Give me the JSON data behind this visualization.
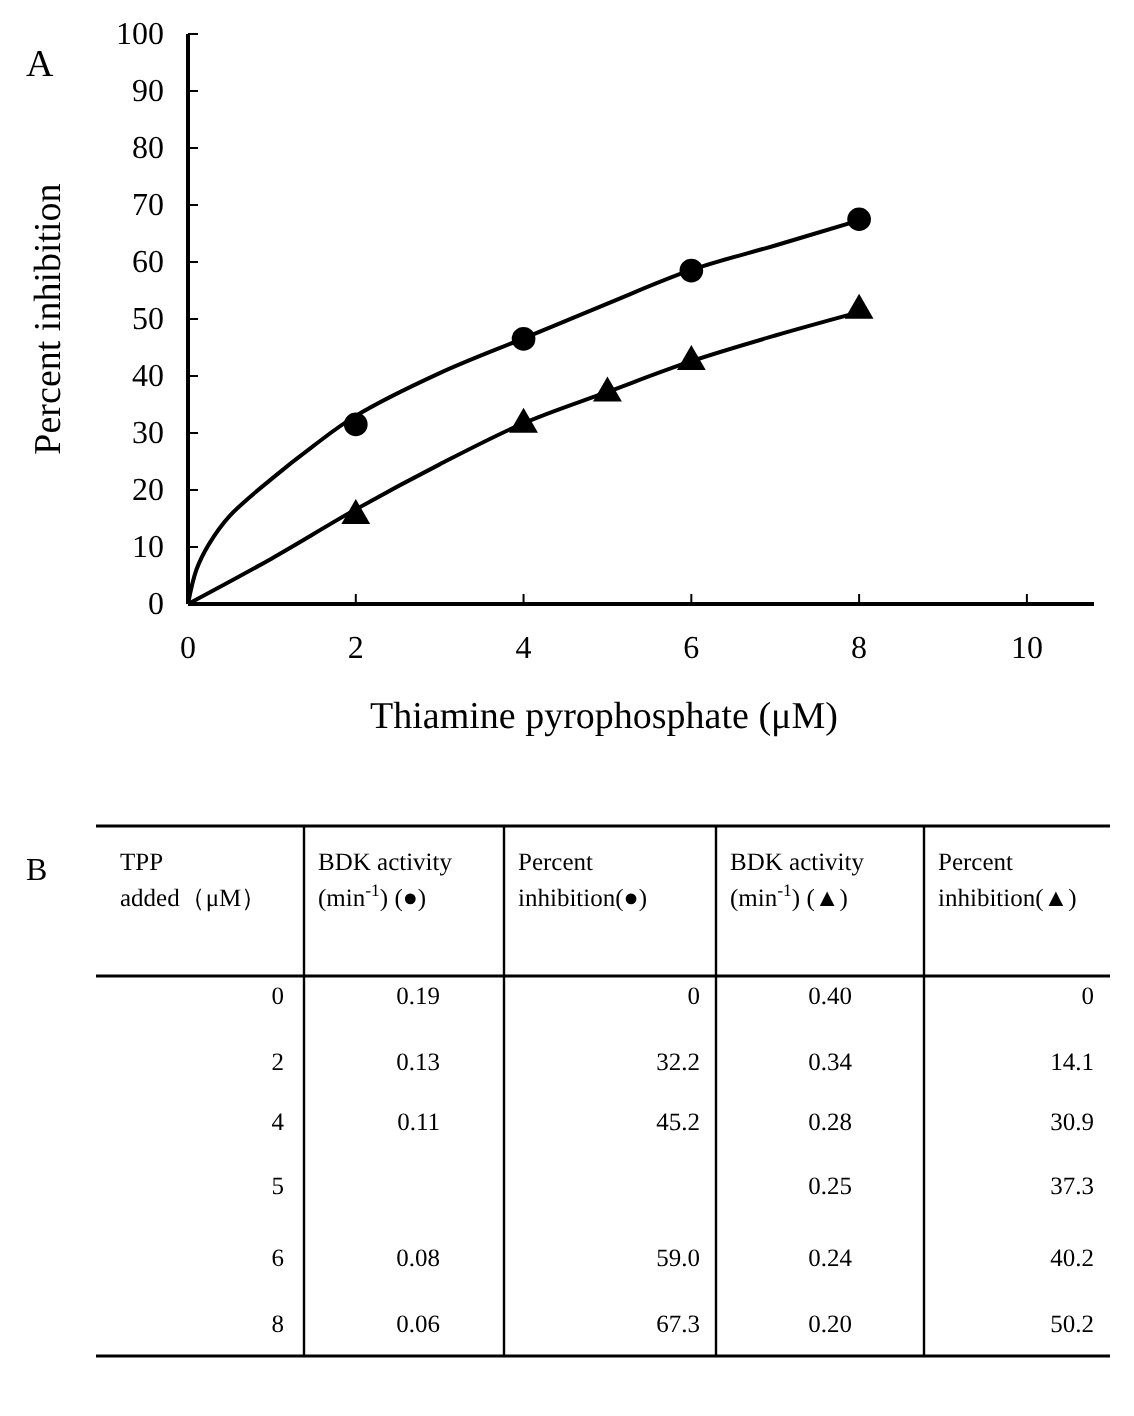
{
  "chart_data": [
    {
      "type": "scatter",
      "title": "A",
      "xlabel": "Thiamine pyrophosphate (μM)",
      "ylabel": "Percent inhibition",
      "xlim": [
        0,
        10.8
      ],
      "ylim": [
        0,
        100
      ],
      "xticks": [
        0,
        2,
        4,
        6,
        8,
        10
      ],
      "yticks": [
        0,
        10,
        20,
        30,
        40,
        50,
        60,
        70,
        80,
        90,
        100
      ],
      "grid": false,
      "series": [
        {
          "type": "line",
          "color": "#000000",
          "x": [
            0,
            0.1,
            0.25,
            0.5,
            1,
            1.5,
            2,
            3,
            4,
            5,
            6,
            7,
            8
          ],
          "values": [
            0,
            6,
            10.5,
            15.5,
            22,
            27.8,
            33,
            40.5,
            46.6,
            52.7,
            58.6,
            62.9,
            67.3
          ]
        },
        {
          "type": "line",
          "color": "#000000",
          "x": [
            0,
            1,
            2,
            3,
            4,
            5,
            6,
            7,
            8
          ],
          "values": [
            0,
            8,
            16.6,
            24.5,
            31.7,
            37.2,
            42.6,
            47.1,
            51.2
          ]
        },
        {
          "type": "scatter",
          "marker": "circle",
          "color": "#000000",
          "x": [
            2,
            4,
            6,
            8
          ],
          "values": [
            31.5,
            46.5,
            58.5,
            67.5
          ]
        },
        {
          "type": "scatter",
          "marker": "triangle",
          "color": "#000000",
          "x": [
            2,
            4,
            5,
            6,
            8
          ],
          "values": [
            15.5,
            31.5,
            37,
            42.5,
            51.5
          ]
        }
      ]
    },
    {
      "type": "other",
      "title": "B",
      "xlabel": "TPP added（μM）",
      "categories": [
        "0",
        "2",
        "4",
        "5",
        "6",
        "8"
      ],
      "series": [
        {
          "name": "BDK activity (min$^{-1}$) (●)",
          "values": [
            0.19,
            0.13,
            0.11,
            null,
            0.08,
            0.06
          ],
          "value_labels": [
            "0.19",
            "0.13",
            "0.11",
            null,
            "0.08",
            "0.06"
          ]
        },
        {
          "name": "Percent inhibition(●)",
          "values": [
            0,
            32.2,
            45.2,
            null,
            59.0,
            67.3
          ],
          "value_labels": [
            "0",
            "32.2",
            "45.2",
            null,
            "59.0",
            "67.3"
          ]
        },
        {
          "name": "BDK activity (min$^{-1}$) (▲)",
          "values": [
            0.4,
            0.34,
            0.28,
            0.25,
            0.24,
            0.2
          ],
          "value_labels": [
            "0.40",
            "0.34",
            "0.28",
            "0.25",
            "0.24",
            "0.20"
          ]
        },
        {
          "name": "Percent inhibition(▲)",
          "values": [
            0,
            14.1,
            30.9,
            37.3,
            40.2,
            50.2
          ],
          "value_labels": [
            "0",
            "14.1",
            "30.9",
            "37.3",
            "40.2",
            "50.2"
          ]
        }
      ]
    }
  ]
}
